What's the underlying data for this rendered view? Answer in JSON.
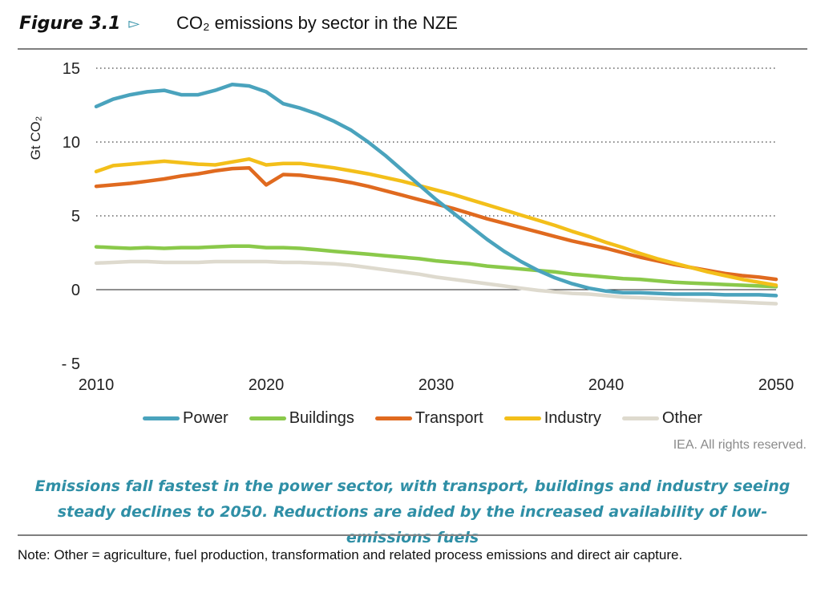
{
  "figure": {
    "number": "Figure 3.1",
    "marker": "▻",
    "title": "CO₂ emissions by sector in the NZE"
  },
  "credit": "IEA. All rights reserved.",
  "caption": "Emissions fall fastest in the power sector, with transport, buildings and industry seeing steady declines to 2050. Reductions are aided by the increased availability of low-emissions fuels",
  "note": "Note: Other = agriculture, fuel production, transformation and related process emissions and direct air capture.",
  "chart_data": {
    "type": "line",
    "title": "CO₂ emissions by sector in the NZE",
    "xlabel": "",
    "ylabel": "Gt CO₂",
    "xlim": [
      2010,
      2050
    ],
    "ylim": [
      -5,
      15
    ],
    "x_ticks": [
      2010,
      2020,
      2030,
      2040,
      2050
    ],
    "y_ticks": [
      -5,
      0,
      5,
      10,
      15
    ],
    "y_tick_labels": [
      "- 5",
      "0",
      "5",
      "10",
      "15"
    ],
    "grid": "horizontal dotted",
    "legend_position": "bottom",
    "x": [
      2010,
      2011,
      2012,
      2013,
      2014,
      2015,
      2016,
      2017,
      2018,
      2019,
      2020,
      2021,
      2022,
      2023,
      2024,
      2025,
      2026,
      2027,
      2028,
      2029,
      2030,
      2031,
      2032,
      2033,
      2034,
      2035,
      2036,
      2037,
      2038,
      2039,
      2040,
      2041,
      2042,
      2043,
      2044,
      2045,
      2046,
      2047,
      2048,
      2049,
      2050
    ],
    "series": [
      {
        "name": "Power",
        "color": "#4aa3bd",
        "values": [
          12.4,
          12.9,
          13.2,
          13.4,
          13.5,
          13.2,
          13.2,
          13.5,
          13.9,
          13.8,
          13.4,
          12.6,
          12.3,
          11.9,
          11.4,
          10.8,
          10.0,
          9.1,
          8.1,
          7.1,
          6.1,
          5.2,
          4.3,
          3.4,
          2.6,
          1.9,
          1.3,
          0.8,
          0.4,
          0.1,
          -0.1,
          -0.2,
          -0.2,
          -0.25,
          -0.3,
          -0.3,
          -0.3,
          -0.35,
          -0.35,
          -0.35,
          -0.4
        ]
      },
      {
        "name": "Buildings",
        "color": "#8ac94a",
        "values": [
          2.9,
          2.85,
          2.8,
          2.85,
          2.8,
          2.85,
          2.85,
          2.9,
          2.95,
          2.95,
          2.85,
          2.85,
          2.8,
          2.7,
          2.6,
          2.5,
          2.4,
          2.3,
          2.2,
          2.1,
          1.95,
          1.85,
          1.75,
          1.6,
          1.5,
          1.4,
          1.3,
          1.2,
          1.05,
          0.95,
          0.85,
          0.75,
          0.7,
          0.6,
          0.5,
          0.45,
          0.4,
          0.35,
          0.3,
          0.25,
          0.2
        ]
      },
      {
        "name": "Transport",
        "color": "#e06a1f",
        "values": [
          7.0,
          7.1,
          7.2,
          7.35,
          7.5,
          7.7,
          7.85,
          8.05,
          8.2,
          8.25,
          7.1,
          7.8,
          7.75,
          7.6,
          7.45,
          7.25,
          7.0,
          6.7,
          6.4,
          6.1,
          5.8,
          5.5,
          5.15,
          4.8,
          4.5,
          4.2,
          3.9,
          3.6,
          3.3,
          3.05,
          2.8,
          2.5,
          2.2,
          1.95,
          1.7,
          1.5,
          1.3,
          1.1,
          0.95,
          0.85,
          0.7
        ]
      },
      {
        "name": "Industry",
        "color": "#f3bf1a",
        "values": [
          8.0,
          8.4,
          8.5,
          8.6,
          8.7,
          8.6,
          8.5,
          8.45,
          8.65,
          8.85,
          8.45,
          8.55,
          8.55,
          8.4,
          8.25,
          8.05,
          7.85,
          7.6,
          7.35,
          7.05,
          6.75,
          6.45,
          6.1,
          5.75,
          5.4,
          5.05,
          4.7,
          4.35,
          3.95,
          3.6,
          3.2,
          2.85,
          2.45,
          2.1,
          1.8,
          1.5,
          1.2,
          0.95,
          0.7,
          0.5,
          0.3
        ]
      },
      {
        "name": "Other",
        "color": "#dedace",
        "values": [
          1.8,
          1.85,
          1.9,
          1.9,
          1.85,
          1.85,
          1.85,
          1.9,
          1.9,
          1.9,
          1.9,
          1.85,
          1.85,
          1.8,
          1.75,
          1.65,
          1.5,
          1.35,
          1.2,
          1.05,
          0.85,
          0.7,
          0.55,
          0.4,
          0.25,
          0.1,
          -0.05,
          -0.15,
          -0.25,
          -0.3,
          -0.4,
          -0.5,
          -0.55,
          -0.6,
          -0.65,
          -0.7,
          -0.75,
          -0.8,
          -0.85,
          -0.9,
          -0.95
        ]
      }
    ]
  }
}
